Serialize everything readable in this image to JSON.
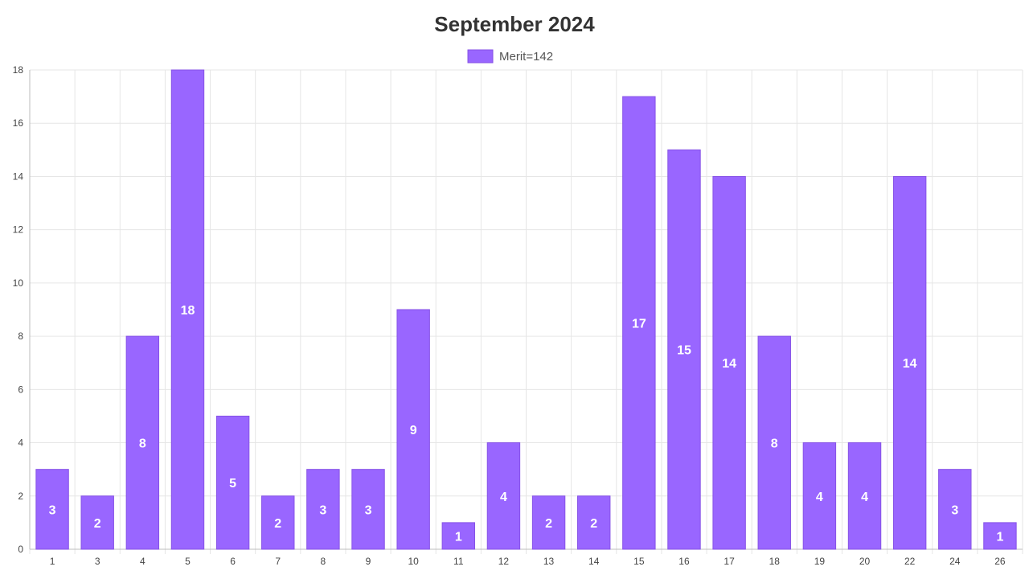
{
  "chart_data": {
    "type": "bar",
    "title": "September 2024",
    "categories": [
      "1",
      "3",
      "4",
      "5",
      "6",
      "7",
      "8",
      "9",
      "10",
      "11",
      "12",
      "13",
      "14",
      "15",
      "16",
      "17",
      "18",
      "19",
      "20",
      "22",
      "24",
      "26"
    ],
    "series": [
      {
        "name": "Merit=142",
        "values": [
          3,
          2,
          8,
          18,
          5,
          2,
          3,
          3,
          9,
          1,
          4,
          2,
          2,
          17,
          15,
          14,
          8,
          4,
          4,
          14,
          3,
          1
        ],
        "color": "#9966ff",
        "border_color": "#8652e6"
      }
    ],
    "ylim": [
      0,
      18
    ],
    "yticks": [
      0,
      2,
      4,
      6,
      8,
      10,
      12,
      14,
      16,
      18
    ],
    "xlabel": "",
    "ylabel": "",
    "grid": true,
    "legend_position": "top"
  }
}
